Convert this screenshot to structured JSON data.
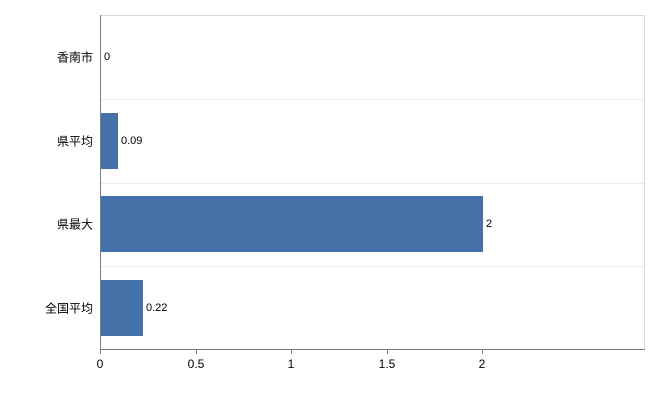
{
  "chart_data": {
    "type": "bar",
    "orientation": "horizontal",
    "title": "",
    "xlabel": "",
    "ylabel": "",
    "categories": [
      "香南市",
      "県平均",
      "県最大",
      "全国平均"
    ],
    "values": [
      0,
      0.09,
      2,
      0.22
    ],
    "value_labels": [
      "0",
      "0.09",
      "2",
      "0.22"
    ],
    "xticks": [
      0,
      0.5,
      1,
      1.5,
      2
    ],
    "xtick_labels": [
      "0",
      "0.5",
      "1",
      "1.5",
      "2"
    ],
    "xlim": [
      0,
      2.85
    ],
    "legend": "none",
    "grid": "category-separators",
    "bar_color": "#4472a8",
    "axis_color": "#7f7f7f",
    "plot_border_color": "#d9d9d9",
    "gridline_color": "#ececec",
    "background_color": "#ffffff",
    "text_color": "#000000"
  }
}
